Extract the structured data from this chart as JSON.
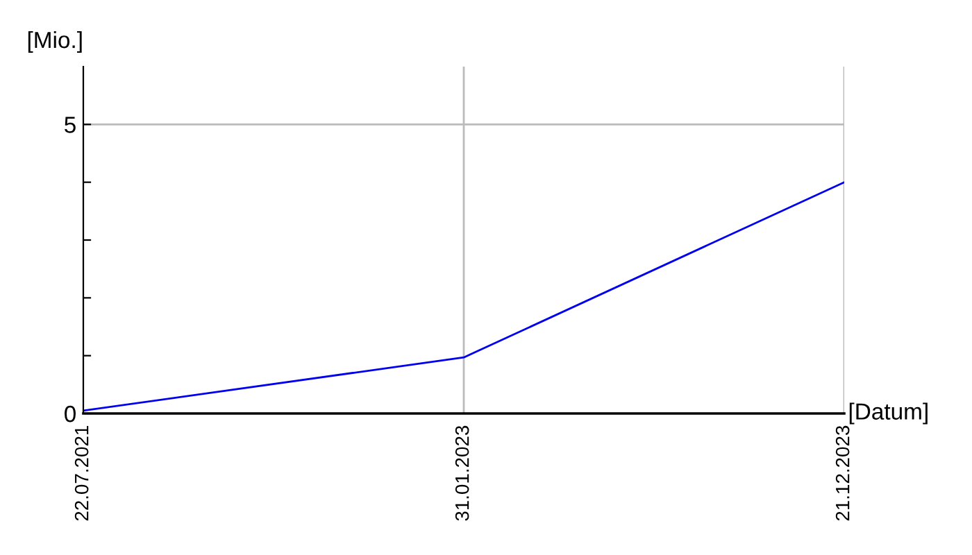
{
  "chart_data": {
    "type": "line",
    "xlabel": "[Datum]",
    "ylabel": "[Mio.]",
    "categories": [
      "22.07.2021",
      "31.01.2023",
      "21.12.2023"
    ],
    "series": [
      {
        "color": "#0000ee",
        "values": [
          0.05,
          0.97,
          4.0
        ]
      }
    ],
    "ylim": [
      0,
      6
    ],
    "yticks": [
      0,
      {
        "value": 1,
        "label": null
      },
      {
        "value": 2,
        "label": null
      },
      {
        "value": 3,
        "label": null
      },
      {
        "value": 4,
        "label": null
      },
      5
    ],
    "grid": true,
    "marker": "none",
    "line_style": "solid",
    "legend": false
  }
}
